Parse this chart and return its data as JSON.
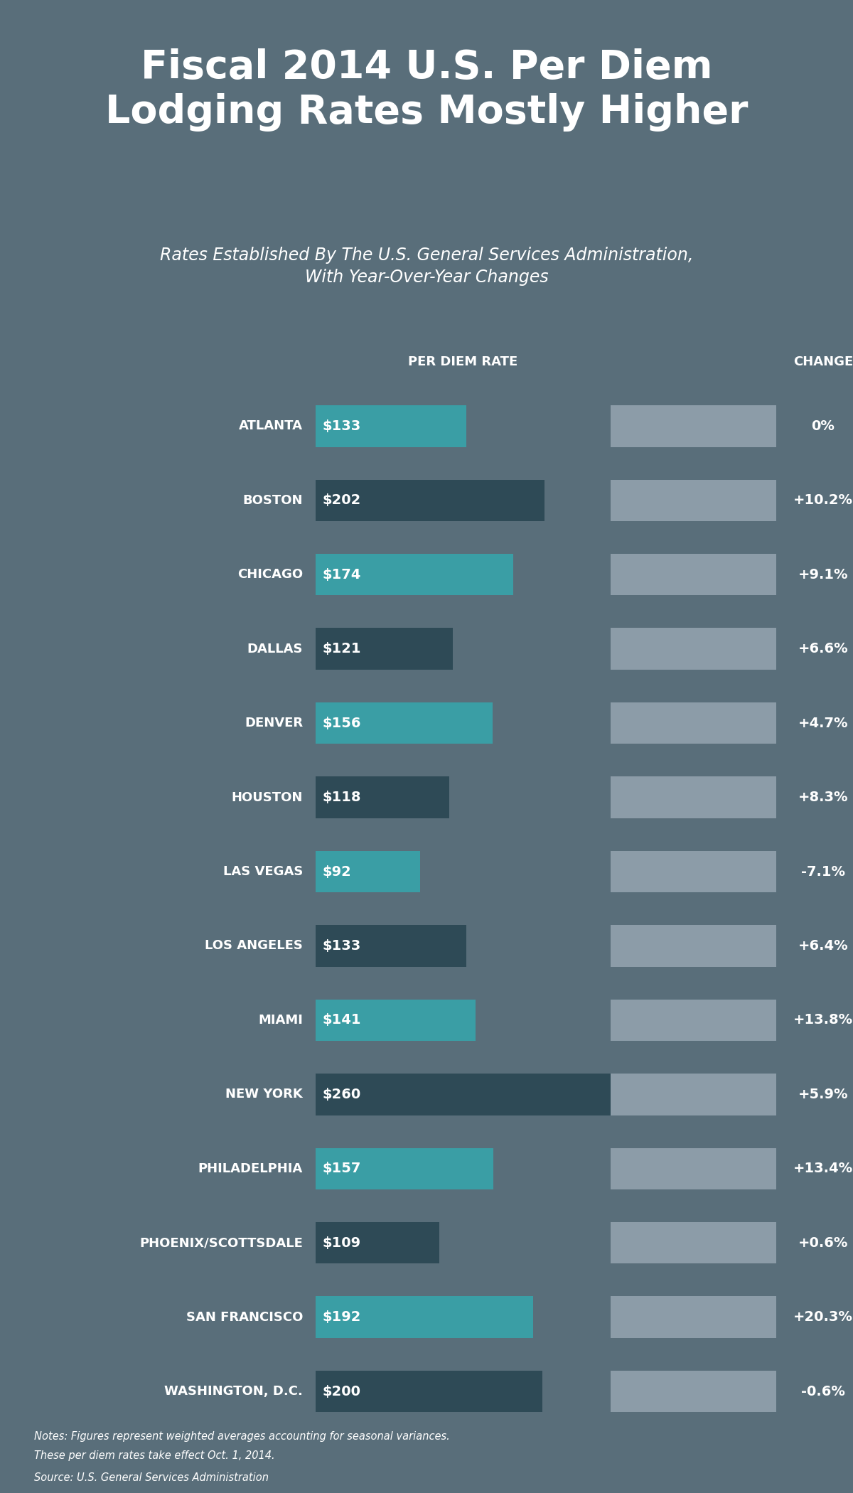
{
  "title_line1": "Fiscal 2014 U.S. Per Diem",
  "title_line2": "Lodging Rates Mostly Higher",
  "subtitle_line1": "Rates Established By The U.S. General Services Administration,",
  "subtitle_line2": "With Year-Over-Year Changes",
  "col_header_rate": "PER DIEM RATE",
  "col_header_change": "CHANGE",
  "cities": [
    "ATLANTA",
    "BOSTON",
    "CHICAGO",
    "DALLAS",
    "DENVER",
    "HOUSTON",
    "LAS VEGAS",
    "LOS ANGELES",
    "MIAMI",
    "NEW YORK",
    "PHILADELPHIA",
    "PHOENIX/SCOTTSDALE",
    "SAN FRANCISCO",
    "WASHINGTON, D.C."
  ],
  "rates": [
    133,
    202,
    174,
    121,
    156,
    118,
    92,
    133,
    141,
    260,
    157,
    109,
    192,
    200
  ],
  "changes": [
    "0%",
    "+10.2%",
    "+9.1%",
    "+6.6%",
    "+4.7%",
    "+8.3%",
    "-7.1%",
    "+6.4%",
    "+13.8%",
    "+5.9%",
    "+13.4%",
    "+0.6%",
    "+20.3%",
    "-0.6%"
  ],
  "teal_cities": [
    "ATLANTA",
    "CHICAGO",
    "DENVER",
    "LAS VEGAS",
    "MIAMI",
    "PHILADELPHIA",
    "SAN FRANCISCO"
  ],
  "teal_color": "#3a9ea5",
  "dark_bar_color": "#2e4a56",
  "grey_bar_color": "#8c9ca8",
  "bg_color_top": "#1b3a3d",
  "bg_color_main": "#596e7a",
  "text_color": "#ffffff",
  "note_text_line1": "Notes: Figures represent weighted averages accounting for seasonal variances.",
  "note_text_line2": "These per diem rates take effect Oct. 1, 2014.",
  "note_text_line3": "Source: U.S. General Services Administration",
  "max_rate": 260
}
